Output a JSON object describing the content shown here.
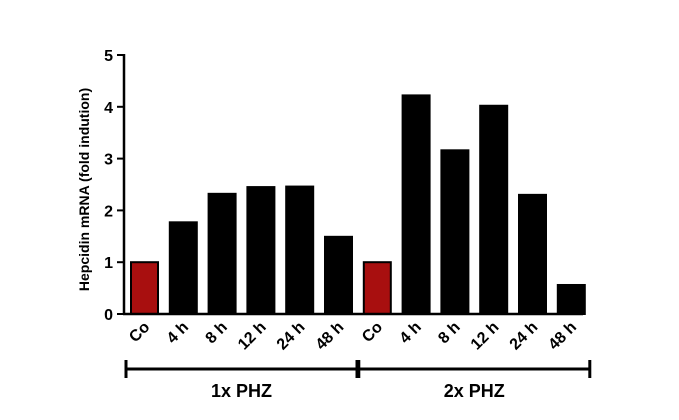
{
  "chart_data": {
    "type": "bar",
    "ylabel": "Hepcidin mRNA (fold indution)",
    "xlabel": "",
    "ylim": [
      0,
      5
    ],
    "yticks": [
      "0",
      "1",
      "2",
      "3",
      "4",
      "5"
    ],
    "categories": [
      "Co",
      "4 h",
      "8 h",
      "12 h",
      "24 h",
      "48 h",
      "Co",
      "4 h",
      "8 h",
      "12 h",
      "24 h",
      "48 h"
    ],
    "values": [
      1.0,
      1.77,
      2.32,
      2.45,
      2.46,
      1.49,
      1.0,
      4.22,
      3.16,
      4.02,
      2.3,
      0.56
    ],
    "bar_colors": [
      "#a80f0f",
      "#000000",
      "#000000",
      "#000000",
      "#000000",
      "#000000",
      "#a80f0f",
      "#000000",
      "#000000",
      "#000000",
      "#000000",
      "#000000"
    ],
    "groups": [
      {
        "label": "1x PHZ",
        "start": 0,
        "end": 5
      },
      {
        "label": "2x PHZ",
        "start": 6,
        "end": 11
      }
    ],
    "grid": false,
    "legend": "none"
  }
}
